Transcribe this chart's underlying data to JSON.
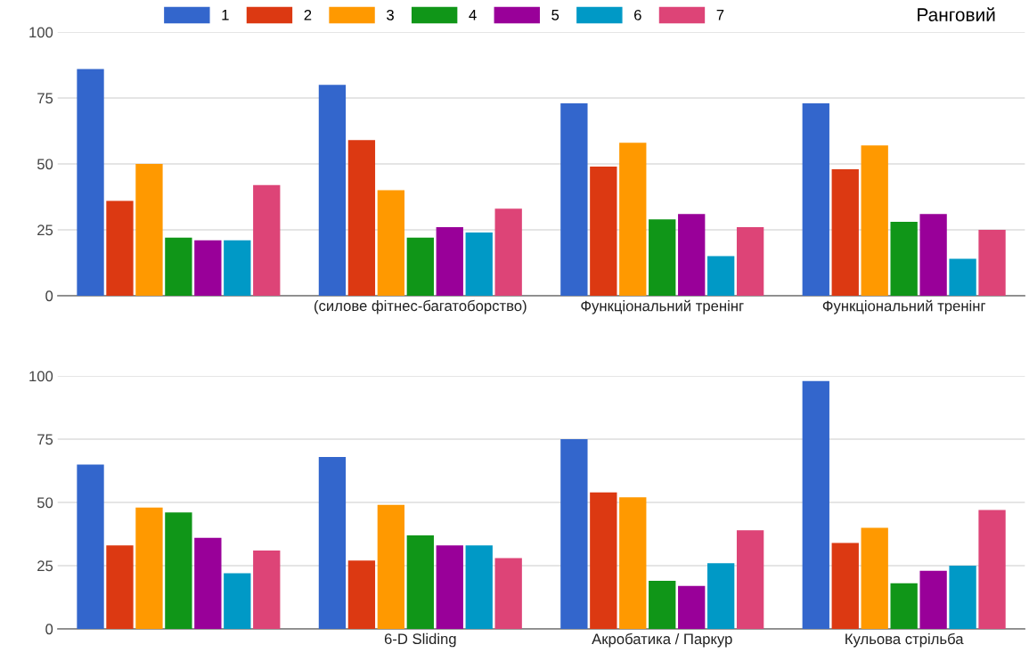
{
  "chart_data": [
    {
      "type": "bar",
      "annotations": [
        "Ранговий"
      ],
      "categories": [
        null,
        "(силове фітнес-багатоборство)",
        "Функціональний тренінг",
        "Функціональний тренінг"
      ],
      "ylim": [
        0,
        100
      ],
      "yticks": [
        0,
        25,
        50,
        75,
        100
      ],
      "grid": "y",
      "legend": "top",
      "series": [
        {
          "name": "1",
          "color": "#3366cc",
          "values": [
            86,
            80,
            73,
            73
          ]
        },
        {
          "name": "2",
          "color": "#dc3912",
          "values": [
            36,
            59,
            49,
            48
          ]
        },
        {
          "name": "3",
          "color": "#ff9900",
          "values": [
            50,
            40,
            58,
            57
          ]
        },
        {
          "name": "4",
          "color": "#109618",
          "values": [
            22,
            22,
            29,
            28
          ]
        },
        {
          "name": "5",
          "color": "#990099",
          "values": [
            21,
            26,
            31,
            31
          ]
        },
        {
          "name": "6",
          "color": "#0099c6",
          "values": [
            21,
            24,
            15,
            14
          ]
        },
        {
          "name": "7",
          "color": "#dd4477",
          "values": [
            42,
            33,
            26,
            25
          ]
        }
      ]
    },
    {
      "type": "bar",
      "categories": [
        null,
        "6-D Sliding",
        "Акробатика / Паркур",
        "Кульова стрільба"
      ],
      "ylim": [
        0,
        100
      ],
      "yticks": [
        0,
        25,
        50,
        75,
        100
      ],
      "grid": "y",
      "series": [
        {
          "color": "#3366cc",
          "values": [
            65,
            68,
            75,
            98
          ]
        },
        {
          "color": "#dc3912",
          "values": [
            33,
            27,
            54,
            34
          ]
        },
        {
          "color": "#ff9900",
          "values": [
            48,
            49,
            52,
            40
          ]
        },
        {
          "color": "#109618",
          "values": [
            46,
            37,
            19,
            18
          ]
        },
        {
          "color": "#990099",
          "values": [
            36,
            33,
            17,
            23
          ]
        },
        {
          "color": "#0099c6",
          "values": [
            22,
            33,
            26,
            25
          ]
        },
        {
          "color": "#dd4477",
          "values": [
            31,
            28,
            39,
            47
          ]
        }
      ]
    }
  ]
}
